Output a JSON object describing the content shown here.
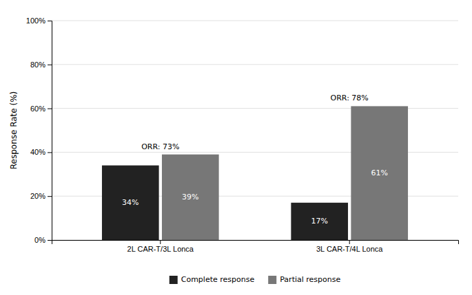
{
  "chart_data": {
    "type": "bar",
    "categories": [
      "2L CAR-T/3L Lonca",
      "3L CAR-T/4L Lonca"
    ],
    "series": [
      {
        "name": "Complete response",
        "color": "#222222",
        "values": [
          34,
          17
        ],
        "value_labels": [
          "34%",
          "17%"
        ]
      },
      {
        "name": "Partial response",
        "color": "#777777",
        "values": [
          39,
          61
        ],
        "value_labels": [
          "39%",
          "61%"
        ]
      }
    ],
    "annotations": [
      "ORR: 73%",
      "ORR: 78%"
    ],
    "ylabel": "Response Rate (%)",
    "ylim": [
      0,
      100
    ],
    "yticks": [
      {
        "value": 0,
        "label": "0%"
      },
      {
        "value": 20,
        "label": "20%"
      },
      {
        "value": 40,
        "label": "40%"
      },
      {
        "value": 60,
        "label": "60%"
      },
      {
        "value": 80,
        "label": "80%"
      },
      {
        "value": 100,
        "label": "100%"
      }
    ],
    "grid": true,
    "legend": "bottom",
    "data_labels": true
  }
}
